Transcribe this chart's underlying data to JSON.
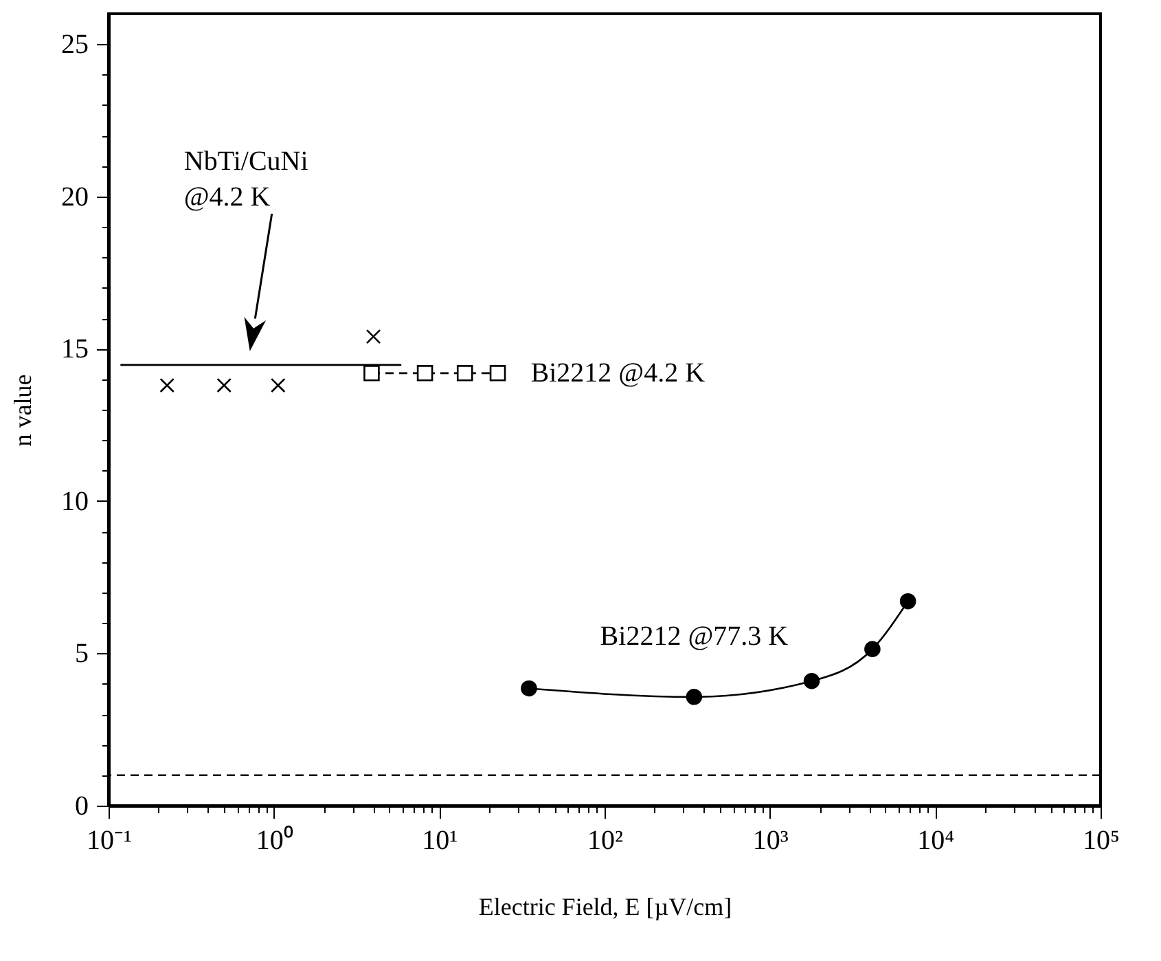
{
  "chart_data": {
    "type": "line",
    "xlabel": "Electric Field, E [µV/cm]",
    "ylabel": "n value",
    "log": "x",
    "grid": false,
    "legend": false,
    "xlim": [
      0.1,
      100000
    ],
    "ylim": [
      0,
      26
    ],
    "xticks": [
      {
        "value": 0.1,
        "label": "10⁻¹"
      },
      {
        "value": 0.2,
        "label": null
      },
      {
        "value": 0.3,
        "label": null
      },
      {
        "value": 0.4,
        "label": null
      },
      {
        "value": 0.5,
        "label": null
      },
      {
        "value": 0.6,
        "label": null
      },
      {
        "value": 0.7,
        "label": null
      },
      {
        "value": 0.8,
        "label": null
      },
      {
        "value": 0.9,
        "label": null
      },
      {
        "value": 1,
        "label": "10⁰"
      },
      {
        "value": 2,
        "label": null
      },
      {
        "value": 3,
        "label": null
      },
      {
        "value": 4,
        "label": null
      },
      {
        "value": 5,
        "label": null
      },
      {
        "value": 6,
        "label": null
      },
      {
        "value": 7,
        "label": null
      },
      {
        "value": 8,
        "label": null
      },
      {
        "value": 9,
        "label": null
      },
      {
        "value": 10,
        "label": "10¹"
      },
      {
        "value": 20,
        "label": null
      },
      {
        "value": 30,
        "label": null
      },
      {
        "value": 40,
        "label": null
      },
      {
        "value": 50,
        "label": null
      },
      {
        "value": 60,
        "label": null
      },
      {
        "value": 70,
        "label": null
      },
      {
        "value": 80,
        "label": null
      },
      {
        "value": 90,
        "label": null
      },
      {
        "value": 100,
        "label": "10²"
      },
      {
        "value": 200,
        "label": null
      },
      {
        "value": 300,
        "label": null
      },
      {
        "value": 400,
        "label": null
      },
      {
        "value": 500,
        "label": null
      },
      {
        "value": 600,
        "label": null
      },
      {
        "value": 700,
        "label": null
      },
      {
        "value": 800,
        "label": null
      },
      {
        "value": 900,
        "label": null
      },
      {
        "value": 1000,
        "label": "10³"
      },
      {
        "value": 2000,
        "label": null
      },
      {
        "value": 3000,
        "label": null
      },
      {
        "value": 4000,
        "label": null
      },
      {
        "value": 5000,
        "label": null
      },
      {
        "value": 6000,
        "label": null
      },
      {
        "value": 7000,
        "label": null
      },
      {
        "value": 8000,
        "label": null
      },
      {
        "value": 9000,
        "label": null
      },
      {
        "value": 10000,
        "label": "10⁴"
      },
      {
        "value": 20000,
        "label": null
      },
      {
        "value": 30000,
        "label": null
      },
      {
        "value": 40000,
        "label": null
      },
      {
        "value": 50000,
        "label": null
      },
      {
        "value": 60000,
        "label": null
      },
      {
        "value": 70000,
        "label": null
      },
      {
        "value": 80000,
        "label": null
      },
      {
        "value": 90000,
        "label": null
      },
      {
        "value": 100000,
        "label": "10⁵"
      }
    ],
    "yticks": [
      0,
      {
        "value": 1,
        "label": null
      },
      {
        "value": 2,
        "label": null
      },
      {
        "value": 3,
        "label": null
      },
      {
        "value": 4,
        "label": null
      },
      5,
      {
        "value": 6,
        "label": null
      },
      {
        "value": 7,
        "label": null
      },
      {
        "value": 8,
        "label": null
      },
      {
        "value": 9,
        "label": null
      },
      10,
      {
        "value": 11,
        "label": null
      },
      {
        "value": 12,
        "label": null
      },
      {
        "value": 13,
        "label": null
      },
      {
        "value": 14,
        "label": null
      },
      15,
      {
        "value": 16,
        "label": null
      },
      {
        "value": 17,
        "label": null
      },
      {
        "value": 18,
        "label": null
      },
      {
        "value": 19,
        "label": null
      },
      20,
      {
        "value": 21,
        "label": null
      },
      {
        "value": 22,
        "label": null
      },
      {
        "value": 23,
        "label": null
      },
      {
        "value": 24,
        "label": null
      },
      25
    ],
    "series": [
      {
        "type": "scatter",
        "marker": "cross",
        "color": "#000000",
        "x": [
          0.226,
          0.5,
          1.06,
          4.0
        ],
        "values": [
          13.8,
          13.8,
          13.8,
          15.4
        ]
      },
      {
        "type": "line",
        "marker": "none",
        "line_style": "solid",
        "color": "#000000",
        "x": [
          0.118,
          5.9
        ],
        "values": [
          14.47,
          14.47
        ]
      },
      {
        "type": "line",
        "name": "Bi2212 @4.2 K",
        "marker": "square",
        "line_style": "dashed",
        "color": "#000000",
        "x": [
          3.9,
          8.2,
          14.3,
          22.6
        ],
        "values": [
          14.2,
          14.2,
          14.2,
          14.2
        ]
      },
      {
        "type": "line",
        "name": "Bi2212 @77.3 K",
        "marker": "circle",
        "line_style": "solid",
        "color": "#000000",
        "x": [
          34.9,
          348,
          1790,
          4170,
          6840
        ],
        "values": [
          3.85,
          3.57,
          4.09,
          5.14,
          6.71
        ]
      }
    ],
    "ref_lines": [
      {
        "axis": "y",
        "value": 1.0,
        "color": "#000000",
        "line_style": "dashed"
      }
    ],
    "annotations": [
      "NbTi/CuNi\n@4.2 K"
    ]
  }
}
